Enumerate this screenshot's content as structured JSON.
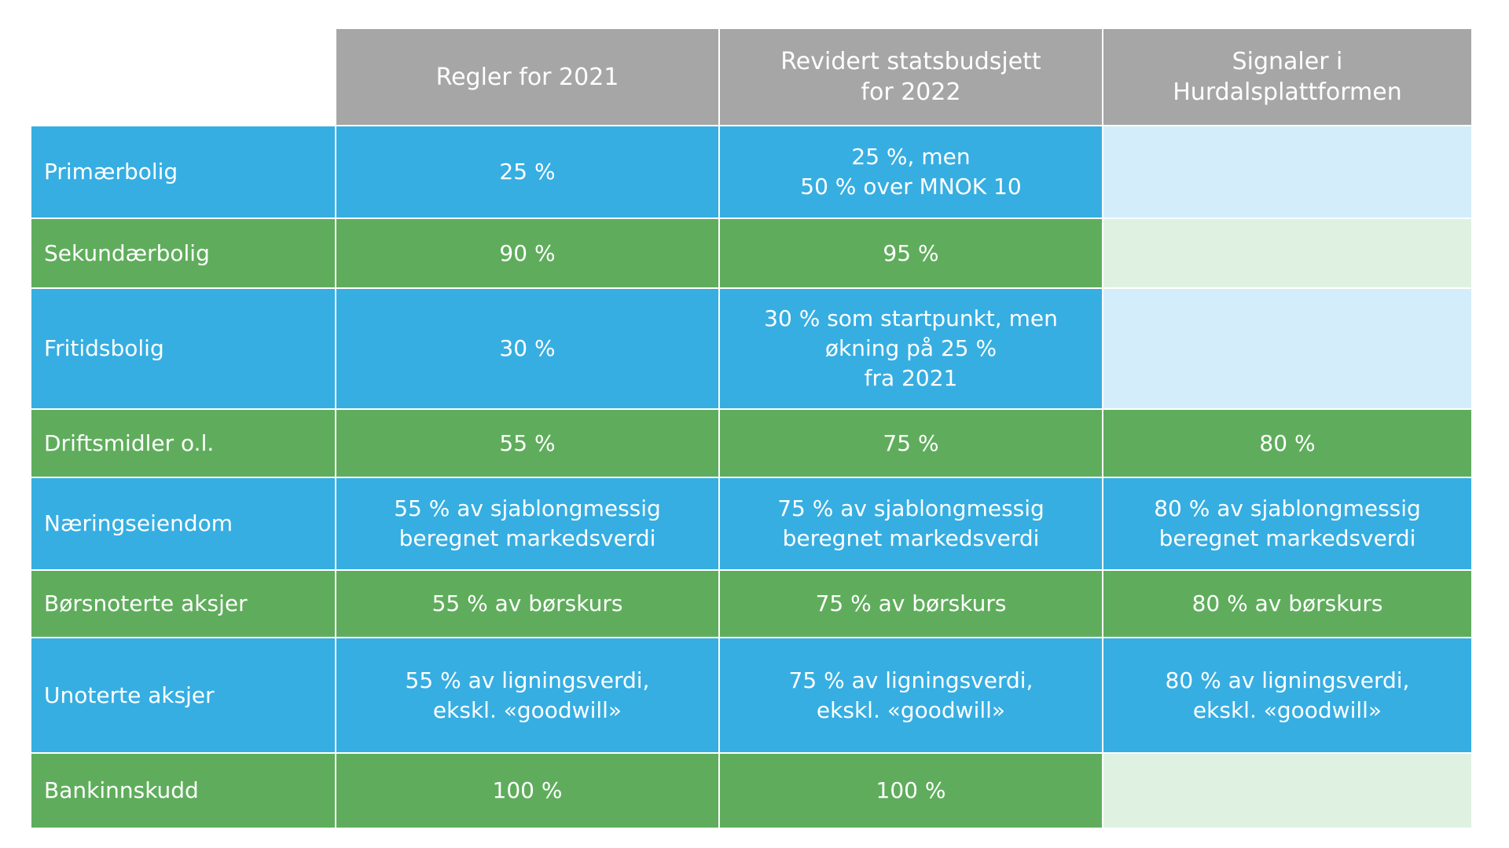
{
  "table": {
    "columns": [
      {
        "key": "corner",
        "label": ""
      },
      {
        "key": "regler-2021",
        "label": "Regler for 2021"
      },
      {
        "key": "revidert-statsbudsjett-2022",
        "label": "Revidert statsbudsjett\nfor 2022"
      },
      {
        "key": "signaler-hurdalsplattformen",
        "label": "Signaler i\nHurdalsplattformen"
      }
    ],
    "rows": [
      {
        "key": "primaerbolig",
        "label": "Primærbolig",
        "color": "blue",
        "cells": [
          "25 %",
          "25 %, men\n50 % over MNOK 10",
          ""
        ]
      },
      {
        "key": "sekundaerbolig",
        "label": "Sekundærbolig",
        "color": "green",
        "cells": [
          "90 %",
          "95 %",
          ""
        ]
      },
      {
        "key": "fritidsbolig",
        "label": "Fritidsbolig",
        "color": "blue",
        "cells": [
          "30 %",
          "30 % som startpunkt, men\nøkning på 25 %\nfra 2021",
          ""
        ]
      },
      {
        "key": "driftsmidler",
        "label": "Driftsmidler o.l.",
        "color": "green",
        "cells": [
          "55 %",
          "75 %",
          "80 %"
        ]
      },
      {
        "key": "naeringseiendom",
        "label": "Næringseiendom",
        "color": "blue",
        "cells": [
          "55 % av sjablongmessig\nberegnet markedsverdi",
          "75 % av sjablongmessig\nberegnet markedsverdi",
          "80 % av sjablongmessig\nberegnet markedsverdi"
        ]
      },
      {
        "key": "boersnoterte-aksjer",
        "label": "Børsnoterte aksjer",
        "color": "green",
        "cells": [
          "55 % av børskurs",
          "75 % av børskurs",
          "80 % av børskurs"
        ]
      },
      {
        "key": "unoterte-aksjer",
        "label": "Unoterte aksjer",
        "color": "blue",
        "cells": [
          "55 % av ligningsverdi,\nekskl. «goodwill»",
          "75 % av ligningsverdi,\nekskl. «goodwill»",
          "80 % av ligningsverdi,\nekskl. «goodwill»"
        ]
      },
      {
        "key": "bankinnskudd",
        "label": "Bankinnskudd",
        "color": "green",
        "cells": [
          "100 %",
          "100 %",
          ""
        ]
      }
    ]
  },
  "colors": {
    "header_bg": "#a6a6a6",
    "row_blue": "#36aee2",
    "row_green": "#5fad5c",
    "empty_blue": "#d3eefa",
    "empty_green": "#dff2e2",
    "text": "#ffffff",
    "background": "#ffffff"
  }
}
